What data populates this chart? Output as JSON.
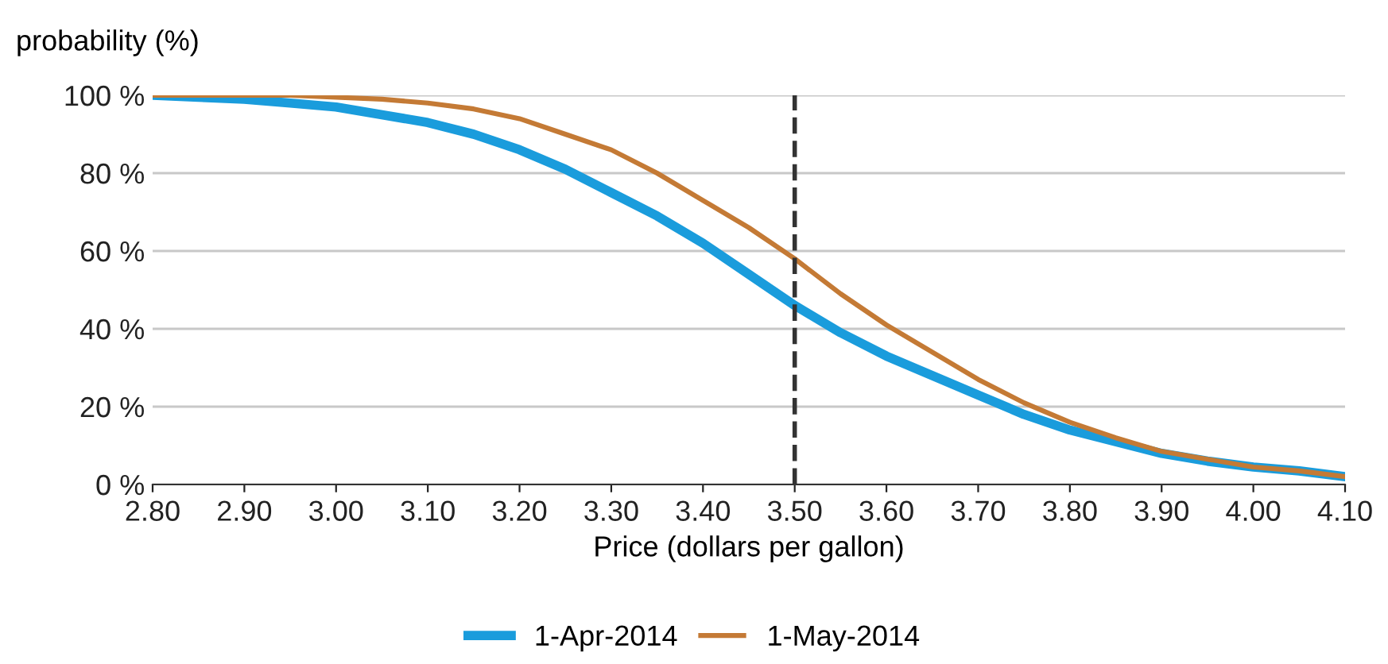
{
  "chart_data": {
    "type": "line",
    "xlabel": "Price (dollars per gallon)",
    "ylabel": "probability (%)",
    "x": [
      2.8,
      2.85,
      2.9,
      2.95,
      3.0,
      3.05,
      3.1,
      3.15,
      3.2,
      3.25,
      3.3,
      3.35,
      3.4,
      3.45,
      3.5,
      3.55,
      3.6,
      3.65,
      3.7,
      3.75,
      3.8,
      3.85,
      3.9,
      3.95,
      4.0,
      4.05,
      4.1
    ],
    "series": [
      {
        "name": "1-Apr-2014",
        "color": "#1a9cdc",
        "values": [
          100,
          99.5,
          99,
          98,
          97,
          95,
          93,
          90,
          86,
          81,
          75,
          69,
          62,
          54,
          46,
          39,
          33,
          28,
          23,
          18,
          14,
          11,
          8,
          6,
          4.5,
          3.5,
          2
        ]
      },
      {
        "name": "1-May-2014",
        "color": "#c47a35",
        "values": [
          100,
          100,
          100,
          100,
          99.5,
          99,
          98,
          96.5,
          94,
          90,
          86,
          80,
          73,
          66,
          58,
          49,
          41,
          34,
          27,
          21,
          16,
          12,
          8.5,
          6.5,
          4.5,
          3.5,
          2
        ]
      }
    ],
    "xlim": [
      2.8,
      4.1
    ],
    "xticks": [
      {
        "value": 2.8,
        "label": "2.80"
      },
      {
        "value": 2.9,
        "label": "2.90"
      },
      {
        "value": 3.0,
        "label": "3.00"
      },
      {
        "value": 3.1,
        "label": "3.10"
      },
      {
        "value": 3.2,
        "label": "3.20"
      },
      {
        "value": 3.3,
        "label": "3.30"
      },
      {
        "value": 3.4,
        "label": "3.40"
      },
      {
        "value": 3.5,
        "label": "3.50"
      },
      {
        "value": 3.6,
        "label": "3.60"
      },
      {
        "value": 3.7,
        "label": "3.70"
      },
      {
        "value": 3.8,
        "label": "3.80"
      },
      {
        "value": 3.9,
        "label": "3.90"
      },
      {
        "value": 4.0,
        "label": "4.00"
      },
      {
        "value": 4.1,
        "label": "4.10"
      }
    ],
    "ylim": [
      0,
      100
    ],
    "yticks": [
      {
        "value": 0,
        "label": "0 %"
      },
      {
        "value": 20,
        "label": "20 %"
      },
      {
        "value": 40,
        "label": "40 %"
      },
      {
        "value": 60,
        "label": "60 %"
      },
      {
        "value": 80,
        "label": "80 %"
      },
      {
        "value": 100,
        "label": "100 %"
      }
    ],
    "ref_lines": [
      {
        "axis": "x",
        "value": 3.5,
        "color": "#333333",
        "line_style": "dashed"
      }
    ],
    "grid": "y",
    "legend": "bottom",
    "marker": "none",
    "line_style": "solid"
  }
}
